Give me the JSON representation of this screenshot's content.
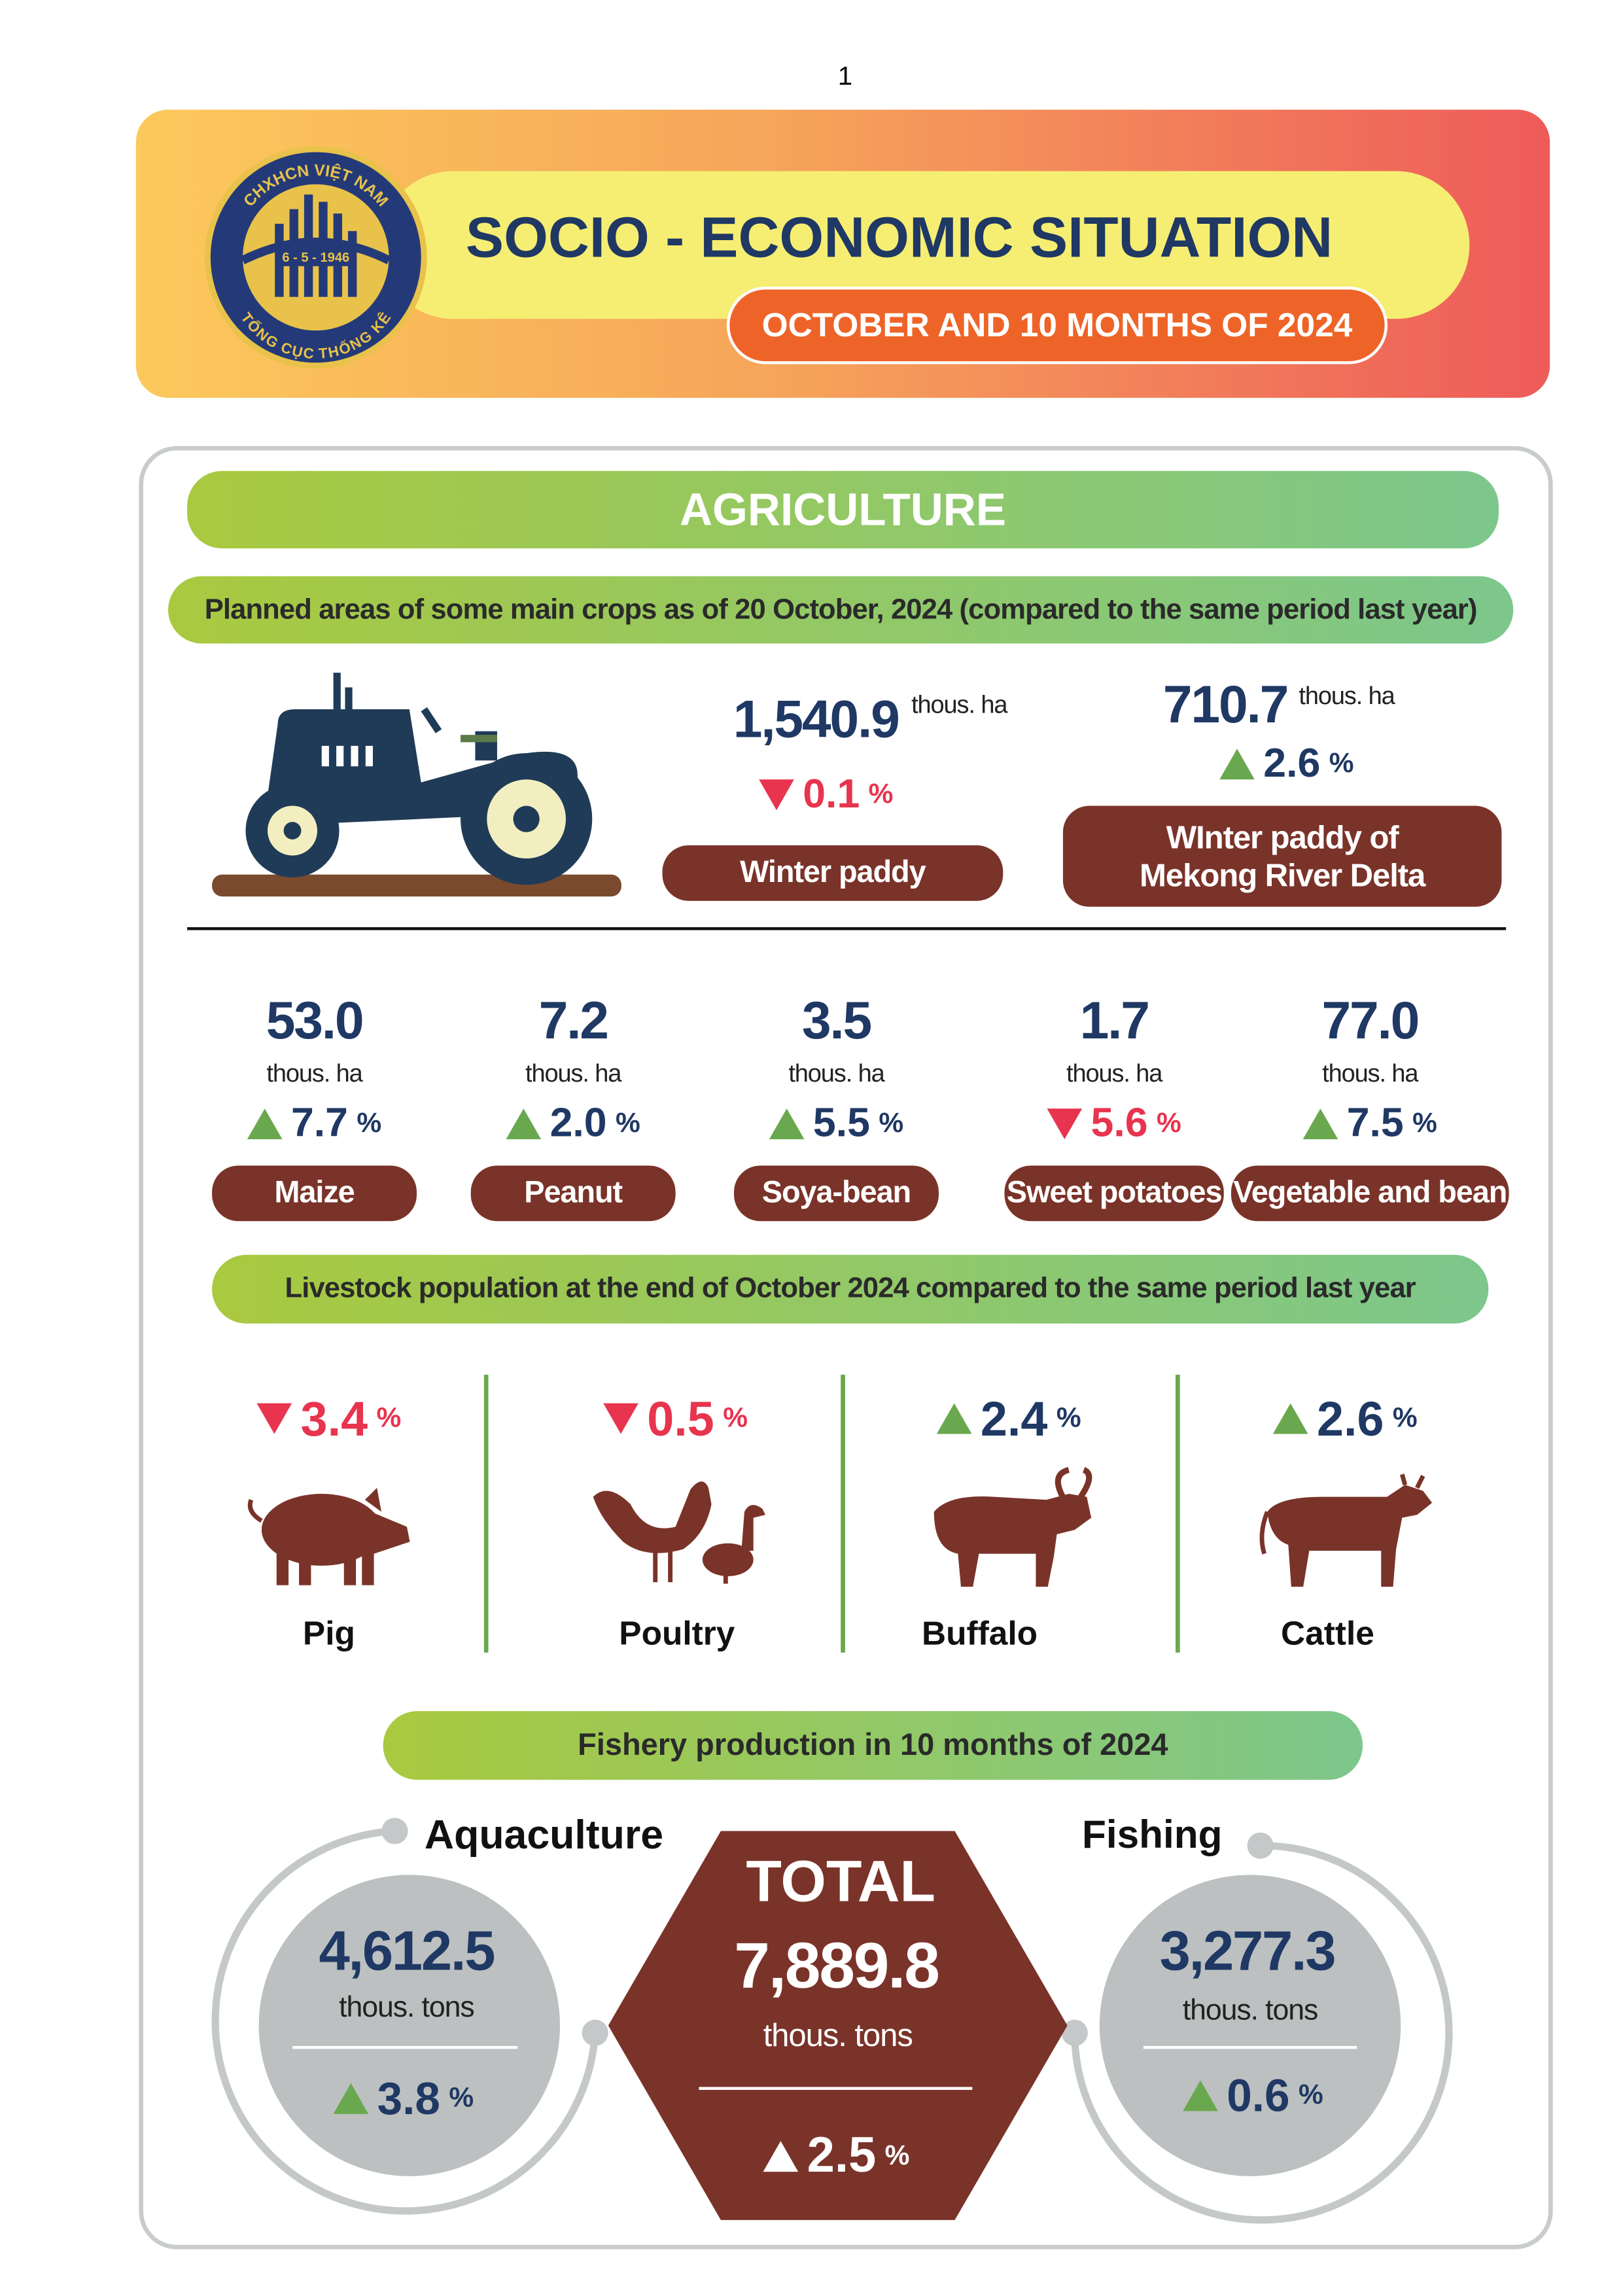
{
  "page_number": "1",
  "header": {
    "logo_top": "CHXHCN VIỆT NAM",
    "logo_date": "6 - 5 - 1946",
    "logo_bottom": "TỔNG CỤC THỐNG KÊ",
    "title": "SOCIO - ECONOMIC SITUATION",
    "subtitle": "OCTOBER AND 10 MONTHS OF 2024"
  },
  "agriculture": {
    "title": "AGRICULTURE",
    "crops_heading": "Planned areas of some main crops as of 20 October, 2024 (compared to the same period last year)",
    "main_crops": [
      {
        "value": "1,540.9",
        "unit": "thous. ha",
        "change": "0.1",
        "change_unit": "%",
        "direction": "down",
        "label_lines": [
          "Winter paddy"
        ]
      },
      {
        "value": "710.7",
        "unit": "thous. ha",
        "change": "2.6",
        "change_unit": "%",
        "direction": "up",
        "label_lines": [
          "WInter paddy of",
          "Mekong River Delta"
        ]
      }
    ],
    "other_crops": [
      {
        "value": "53.0",
        "unit": "thous. ha",
        "change": "7.7",
        "change_unit": "%",
        "direction": "up",
        "label": "Maize"
      },
      {
        "value": "7.2",
        "unit": "thous. ha",
        "change": "2.0",
        "change_unit": "%",
        "direction": "up",
        "label": "Peanut"
      },
      {
        "value": "3.5",
        "unit": "thous. ha",
        "change": "5.5",
        "change_unit": "%",
        "direction": "up",
        "label": "Soya-bean"
      },
      {
        "value": "1.7",
        "unit": "thous. ha",
        "change": "5.6",
        "change_unit": "%",
        "direction": "down",
        "label": "Sweet potatoes"
      },
      {
        "value": "77.0",
        "unit": "thous. ha",
        "change": "7.5",
        "change_unit": "%",
        "direction": "up",
        "label": "Vegetable and bean"
      }
    ],
    "livestock_heading": "Livestock population at the end of October 2024 compared to the same period last year",
    "livestock": [
      {
        "name": "Pig",
        "change": "3.4",
        "change_unit": "%",
        "direction": "down"
      },
      {
        "name": "Poultry",
        "change": "0.5",
        "change_unit": "%",
        "direction": "down"
      },
      {
        "name": "Buffalo",
        "change": "2.4",
        "change_unit": "%",
        "direction": "up"
      },
      {
        "name": "Cattle",
        "change": "2.6",
        "change_unit": "%",
        "direction": "up"
      }
    ],
    "fishery_heading": "Fishery production in 10 months of 2024",
    "fishery": {
      "aquaculture": {
        "label": "Aquaculture",
        "value": "4,612.5",
        "unit": "thous. tons",
        "change": "3.8",
        "change_unit": "%",
        "direction": "up"
      },
      "total": {
        "label": "TOTAL",
        "value": "7,889.8",
        "unit": "thous. tons",
        "change": "2.5",
        "change_unit": "%",
        "direction": "up"
      },
      "fishing": {
        "label": "Fishing",
        "value": "3,277.3",
        "unit": "thous. tons",
        "change": "0.6",
        "change_unit": "%",
        "direction": "up"
      }
    }
  }
}
